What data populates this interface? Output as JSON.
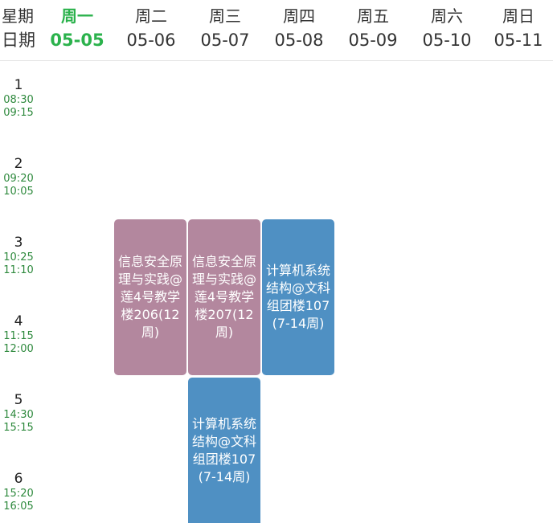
{
  "header": {
    "week_label": "星期",
    "date_label": "日期",
    "days": [
      {
        "name": "周一",
        "date": "05-05",
        "active": true
      },
      {
        "name": "周二",
        "date": "05-06",
        "active": false
      },
      {
        "name": "周三",
        "date": "05-07",
        "active": false
      },
      {
        "name": "周四",
        "date": "05-08",
        "active": false
      },
      {
        "name": "周五",
        "date": "05-09",
        "active": false
      },
      {
        "name": "周六",
        "date": "05-10",
        "active": false
      },
      {
        "name": "周日",
        "date": "05-11",
        "active": false
      }
    ]
  },
  "periods": [
    {
      "num": "1",
      "start": "08:30",
      "end": "09:15"
    },
    {
      "num": "2",
      "start": "09:20",
      "end": "10:05"
    },
    {
      "num": "3",
      "start": "10:25",
      "end": "11:10"
    },
    {
      "num": "4",
      "start": "11:15",
      "end": "12:00"
    },
    {
      "num": "5",
      "start": "14:30",
      "end": "15:15"
    },
    {
      "num": "6",
      "start": "15:20",
      "end": "16:05"
    }
  ],
  "courses": [
    {
      "text": "信息安全原理与实践@莲4号教学楼206(12周)",
      "color": "#b3879e"
    },
    {
      "text": "信息安全原理与实践@莲4号教学楼207(12周)",
      "color": "#b3879e"
    },
    {
      "text": "计算机系统结构@文科组团楼107(7-14周)",
      "color": "#4f90c3"
    },
    {
      "text": "计算机系统结构@文科组团楼107(7-14周)",
      "color": "#4f90c3"
    }
  ]
}
